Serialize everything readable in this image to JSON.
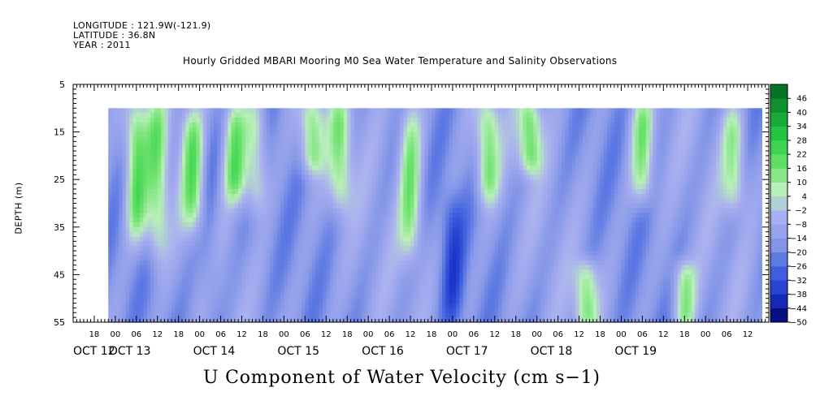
{
  "header": {
    "longitude": "LONGITUDE : 121.9W(-121.9)",
    "latitude": "LATITUDE : 36.8N",
    "year": "YEAR : 2011",
    "title": "Hourly Gridded MBARI Mooring M0 Sea Water Temperature and Salinity Observations"
  },
  "colors": {
    "background": "#ffffff",
    "missing": "#ffffff",
    "colormap": [
      "#000066",
      "#1a33cc",
      "#4466e0",
      "#8899e8",
      "#aab0f0",
      "#b8f0b8",
      "#66e066",
      "#22cc44",
      "#119933",
      "#006622"
    ]
  },
  "chart_data": {
    "type": "heatmap",
    "title": "Hourly Gridded MBARI Mooring M0 Sea Water Temperature and Salinity Observations",
    "xlabel": "U Component of Water Velocity (cm s−1)",
    "ylabel": "DEPTH (m)",
    "y_axis": {
      "range": [
        5,
        55
      ],
      "inverted": true,
      "ticks": [
        5,
        15,
        25,
        35,
        45,
        55
      ],
      "minor_step": 1
    },
    "x_axis": {
      "range_hours": [
        -12,
        186
      ],
      "hour_ticks": [
        "18",
        "00",
        "06",
        "12",
        "18",
        "00",
        "06",
        "12",
        "18",
        "00",
        "06",
        "12",
        "18",
        "00",
        "06",
        "12",
        "18",
        "00",
        "06",
        "12",
        "18",
        "00",
        "06",
        "12",
        "18",
        "00",
        "06",
        "12",
        "18",
        "00",
        "06",
        "12"
      ],
      "hour_tick_values": [
        -6,
        0,
        6,
        12,
        18,
        24,
        30,
        36,
        42,
        48,
        54,
        60,
        66,
        72,
        78,
        84,
        90,
        96,
        102,
        108,
        114,
        120,
        126,
        132,
        138,
        144,
        150,
        156,
        162,
        168,
        174,
        180
      ],
      "day_labels": [
        "OCT 12",
        "OCT 13",
        "OCT 14",
        "OCT 15",
        "OCT 16",
        "OCT 17",
        "OCT 18",
        "OCT 19"
      ],
      "day_label_values": [
        -12,
        0,
        24,
        48,
        72,
        96,
        120,
        144
      ]
    },
    "data_extent": {
      "depth": [
        10,
        55
      ],
      "hours": [
        -2,
        184
      ]
    },
    "colorbar": {
      "levels": [
        -50,
        -44,
        -38,
        -32,
        -26,
        -20,
        -14,
        -8,
        -2,
        4,
        10,
        16,
        22,
        28,
        34,
        40,
        46
      ],
      "labels": [
        "46",
        "40",
        "34",
        "28",
        "22",
        "16",
        "10",
        "4",
        "−2",
        "−8",
        "−14",
        "−20",
        "−26",
        "−32",
        "−38",
        "−44",
        "−50"
      ],
      "range": [
        -50,
        52
      ]
    },
    "features": [
      {
        "t": 6,
        "depth_top": 10,
        "depth_bottom": 36,
        "value": 20
      },
      {
        "t": 12,
        "depth_top": 10,
        "depth_bottom": 40,
        "value": 14
      },
      {
        "t": 22,
        "depth_top": 12,
        "depth_bottom": 34,
        "value": 14
      },
      {
        "t": 27,
        "depth_top": 10,
        "depth_bottom": 55,
        "value": -22
      },
      {
        "t": 34,
        "depth_top": 10,
        "depth_bottom": 28,
        "value": 18
      },
      {
        "t": 40,
        "depth_top": 10,
        "depth_bottom": 30,
        "value": 10
      },
      {
        "t": 56,
        "depth_top": 10,
        "depth_bottom": 22,
        "value": 16
      },
      {
        "t": 64,
        "depth_top": 10,
        "depth_bottom": 30,
        "value": 12
      },
      {
        "t": 84,
        "depth_top": 10,
        "depth_bottom": 40,
        "value": 14
      },
      {
        "t": 96,
        "depth_top": 30,
        "depth_bottom": 55,
        "value": -30
      },
      {
        "t": 106,
        "depth_top": 10,
        "depth_bottom": 28,
        "value": 16
      },
      {
        "t": 118,
        "depth_top": 10,
        "depth_bottom": 22,
        "value": 18
      },
      {
        "t": 134,
        "depth_top": 44,
        "depth_bottom": 55,
        "value": 14
      },
      {
        "t": 150,
        "depth_top": 10,
        "depth_bottom": 28,
        "value": 14
      },
      {
        "t": 162,
        "depth_top": 44,
        "depth_bottom": 55,
        "value": 12
      },
      {
        "t": 176,
        "depth_top": 12,
        "depth_bottom": 30,
        "value": 10
      }
    ]
  }
}
